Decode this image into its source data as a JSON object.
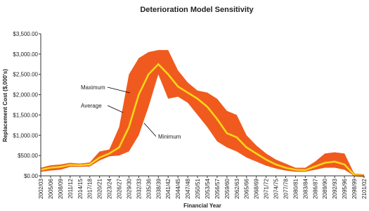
{
  "chart_data": {
    "type": "band_line",
    "title": "Deterioration Model Sensitivity",
    "y_label": "Replacement Cost ($,000's)",
    "x_label": "Financial Year",
    "categories": [
      "2002/03",
      "2005/06",
      "2008/09",
      "2011/12",
      "2014/15",
      "2017/18",
      "2020/21",
      "2023/24",
      "2026/27",
      "2029/30",
      "2032/33",
      "2035/36",
      "2038/39",
      "2041/42",
      "2044/45",
      "2047/48",
      "2050/51",
      "2053/54",
      "2056/57",
      "2059/60",
      "2062/63",
      "2065/66",
      "2068/69",
      "2071/72",
      "2074/75",
      "2077/78",
      "2080/81",
      "2083/84",
      "2086/87",
      "2089/90",
      "2092/93",
      "2095/96",
      "2098/99",
      "2101/02"
    ],
    "series": [
      {
        "name": "Maximum",
        "color": "#f05a1e",
        "values": [
          200,
          260,
          280,
          320,
          300,
          330,
          600,
          650,
          1200,
          2500,
          2900,
          3050,
          3100,
          3100,
          2600,
          2300,
          2100,
          2050,
          1900,
          1600,
          1500,
          1000,
          750,
          550,
          400,
          300,
          200,
          200,
          350,
          550,
          580,
          550,
          50,
          0
        ]
      },
      {
        "name": "Average",
        "color": "#ffe01a",
        "values": [
          150,
          200,
          220,
          270,
          260,
          280,
          450,
          550,
          700,
          1200,
          2000,
          2500,
          2750,
          2500,
          2200,
          2050,
          1900,
          1700,
          1400,
          1050,
          950,
          700,
          550,
          400,
          280,
          200,
          150,
          140,
          230,
          320,
          350,
          280,
          20,
          0
        ]
      },
      {
        "name": "Minimum",
        "color": "#ffffff",
        "values": [
          100,
          130,
          150,
          220,
          220,
          230,
          380,
          480,
          500,
          600,
          1000,
          1700,
          2500,
          1900,
          1950,
          1800,
          1500,
          1200,
          850,
          700,
          600,
          450,
          350,
          250,
          180,
          130,
          100,
          100,
          150,
          200,
          200,
          150,
          0,
          0
        ]
      }
    ],
    "ylim": [
      0,
      3500
    ],
    "yticks": [
      {
        "value": 0,
        "label": "$0.00"
      },
      {
        "value": 500,
        "label": "$500.00"
      },
      {
        "value": 1000,
        "label": "$1,000.00"
      },
      {
        "value": 1500,
        "label": "$1,500.00"
      },
      {
        "value": 2000,
        "label": "$2,000.00"
      },
      {
        "value": 2500,
        "label": "$2,500.00"
      },
      {
        "value": 3000,
        "label": "$3,000.00"
      },
      {
        "value": 3500,
        "label": "$3,500.00"
      }
    ],
    "annotations": [
      "Maximum",
      "Average",
      "Minimum"
    ]
  }
}
